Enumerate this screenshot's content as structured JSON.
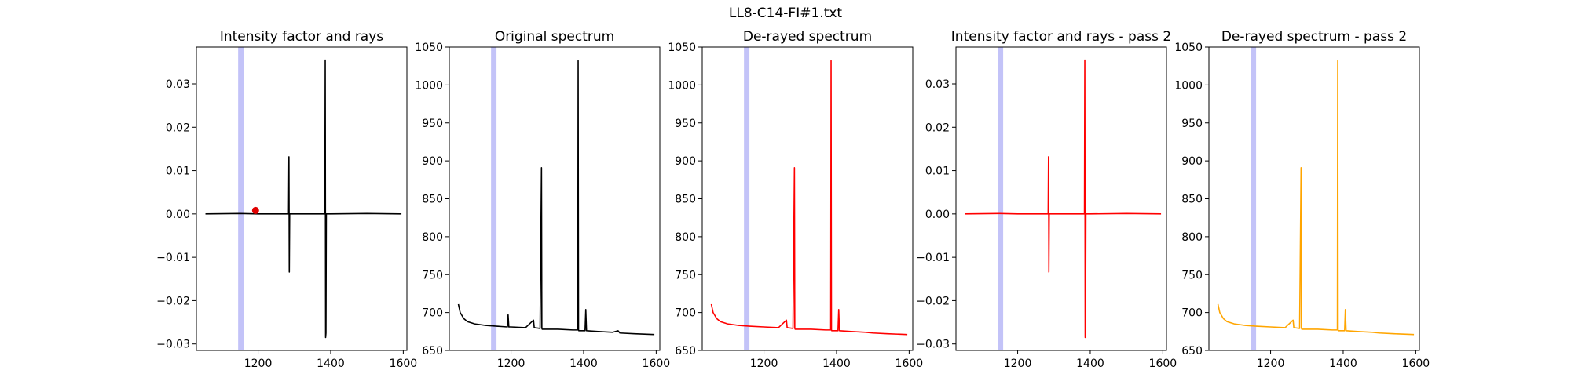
{
  "figure": {
    "suptitle": "LL8-C14-FI#1.txt"
  },
  "chart_data": [
    {
      "type": "line",
      "title": "Intensity factor and rays",
      "xlim": [
        1030,
        1610
      ],
      "ylim": [
        -0.0315,
        0.0385
      ],
      "xticks": [
        1200,
        1400,
        1600
      ],
      "xtick_labels": [
        "1200",
        "1400",
        "1600"
      ],
      "yticks": [
        -0.03,
        -0.02,
        -0.01,
        0.0,
        0.01,
        0.02,
        0.03
      ],
      "ytick_labels": [
        "−0.03",
        "−0.02",
        "−0.01",
        "0.00",
        "0.01",
        "0.02",
        "0.03"
      ],
      "shaded_band": {
        "x": [
          1145,
          1160
        ],
        "color": "#7b7bf0"
      },
      "series": [
        {
          "color": "#000000",
          "x": [
            1055,
            1150,
            1200,
            1284,
            1285,
            1286,
            1287,
            1288,
            1300,
            1384,
            1385,
            1386,
            1387,
            1388,
            1400,
            1500,
            1595
          ],
          "y": [
            0.0,
            0.0001,
            0.0,
            0.0,
            0.0132,
            -0.0134,
            0.0,
            0.0,
            0.0,
            0.0,
            0.0355,
            -0.0285,
            -0.0275,
            0.0,
            0.0,
            0.0001,
            0.0
          ]
        }
      ],
      "markers": [
        {
          "x": 1193,
          "y": 0.0008,
          "color": "#e00000"
        }
      ]
    },
    {
      "type": "line",
      "title": "Original spectrum",
      "xlim": [
        1030,
        1610
      ],
      "ylim": [
        650,
        1050
      ],
      "xticks": [
        1200,
        1400,
        1600
      ],
      "xtick_labels": [
        "1200",
        "1400",
        "1600"
      ],
      "yticks": [
        650,
        700,
        750,
        800,
        850,
        900,
        950,
        1000,
        1050
      ],
      "ytick_labels": [
        "650",
        "700",
        "750",
        "800",
        "850",
        "900",
        "950",
        "1000",
        "1050"
      ],
      "shaded_band": {
        "x": [
          1145,
          1160
        ],
        "color": "#7b7bf0"
      },
      "series": [
        {
          "color": "#000000",
          "x": [
            1055,
            1060,
            1070,
            1080,
            1100,
            1130,
            1160,
            1190,
            1192,
            1194,
            1200,
            1240,
            1262,
            1264,
            1266,
            1280,
            1284,
            1285,
            1286,
            1287,
            1290,
            1330,
            1370,
            1384,
            1385,
            1386,
            1387,
            1390,
            1404,
            1406,
            1408,
            1440,
            1480,
            1495,
            1500,
            1540,
            1595
          ],
          "y": [
            711,
            700,
            692,
            688,
            685,
            683,
            682,
            681,
            697,
            681,
            681,
            680,
            690,
            680,
            680,
            679,
            891,
            679,
            678,
            678,
            678,
            678,
            677,
            677,
            1032,
            677,
            676,
            676,
            676,
            704,
            676,
            675,
            674,
            676,
            673,
            672,
            671
          ]
        }
      ]
    },
    {
      "type": "line",
      "title": "De-rayed spectrum",
      "xlim": [
        1030,
        1610
      ],
      "ylim": [
        650,
        1050
      ],
      "xticks": [
        1200,
        1400,
        1600
      ],
      "xtick_labels": [
        "1200",
        "1400",
        "1600"
      ],
      "yticks": [
        650,
        700,
        750,
        800,
        850,
        900,
        950,
        1000,
        1050
      ],
      "ytick_labels": [
        "650",
        "700",
        "750",
        "800",
        "850",
        "900",
        "950",
        "1000",
        "1050"
      ],
      "shaded_band": {
        "x": [
          1145,
          1160
        ],
        "color": "#7b7bf0"
      },
      "series": [
        {
          "color": "#ff0000",
          "x": [
            1055,
            1060,
            1070,
            1080,
            1100,
            1130,
            1160,
            1200,
            1240,
            1262,
            1264,
            1266,
            1280,
            1284,
            1285,
            1286,
            1287,
            1290,
            1330,
            1370,
            1384,
            1385,
            1386,
            1387,
            1390,
            1404,
            1406,
            1408,
            1440,
            1480,
            1500,
            1540,
            1595
          ],
          "y": [
            711,
            700,
            692,
            688,
            685,
            683,
            682,
            681,
            680,
            690,
            680,
            680,
            679,
            891,
            679,
            678,
            678,
            678,
            678,
            677,
            677,
            1032,
            677,
            676,
            676,
            676,
            704,
            676,
            675,
            674,
            673,
            672,
            671
          ]
        }
      ]
    },
    {
      "type": "line",
      "title": "Intensity factor and rays - pass 2",
      "xlim": [
        1030,
        1610
      ],
      "ylim": [
        -0.0315,
        0.0385
      ],
      "xticks": [
        1200,
        1400,
        1600
      ],
      "xtick_labels": [
        "1200",
        "1400",
        "1600"
      ],
      "yticks": [
        -0.03,
        -0.02,
        -0.01,
        0.0,
        0.01,
        0.02,
        0.03
      ],
      "ytick_labels": [
        "−0.03",
        "−0.02",
        "−0.01",
        "0.00",
        "0.01",
        "0.02",
        "0.03"
      ],
      "shaded_band": {
        "x": [
          1145,
          1160
        ],
        "color": "#7b7bf0"
      },
      "series": [
        {
          "color": "#ff0000",
          "x": [
            1055,
            1150,
            1200,
            1284,
            1285,
            1286,
            1287,
            1288,
            1300,
            1384,
            1385,
            1386,
            1387,
            1388,
            1400,
            1500,
            1595
          ],
          "y": [
            0.0,
            0.0001,
            0.0,
            0.0,
            0.0132,
            -0.0134,
            0.0,
            0.0,
            0.0,
            0.0,
            0.0355,
            -0.0285,
            -0.0275,
            0.0,
            0.0,
            0.0001,
            0.0
          ]
        }
      ]
    },
    {
      "type": "line",
      "title": "De-rayed spectrum - pass 2",
      "xlim": [
        1030,
        1610
      ],
      "ylim": [
        650,
        1050
      ],
      "xticks": [
        1200,
        1400,
        1600
      ],
      "xtick_labels": [
        "1200",
        "1400",
        "1600"
      ],
      "yticks": [
        650,
        700,
        750,
        800,
        850,
        900,
        950,
        1000,
        1050
      ],
      "ytick_labels": [
        "650",
        "700",
        "750",
        "800",
        "850",
        "900",
        "950",
        "1000",
        "1050"
      ],
      "shaded_band": {
        "x": [
          1145,
          1160
        ],
        "color": "#7b7bf0"
      },
      "series": [
        {
          "color": "#ffa500",
          "x": [
            1055,
            1060,
            1070,
            1080,
            1100,
            1130,
            1160,
            1200,
            1240,
            1262,
            1264,
            1266,
            1280,
            1284,
            1285,
            1286,
            1287,
            1290,
            1330,
            1370,
            1384,
            1385,
            1386,
            1387,
            1390,
            1404,
            1406,
            1408,
            1440,
            1480,
            1500,
            1540,
            1595
          ],
          "y": [
            711,
            700,
            692,
            688,
            685,
            683,
            682,
            681,
            680,
            690,
            680,
            680,
            679,
            891,
            679,
            678,
            678,
            678,
            678,
            677,
            677,
            1032,
            677,
            676,
            676,
            676,
            704,
            676,
            675,
            674,
            673,
            672,
            671
          ]
        }
      ]
    }
  ]
}
